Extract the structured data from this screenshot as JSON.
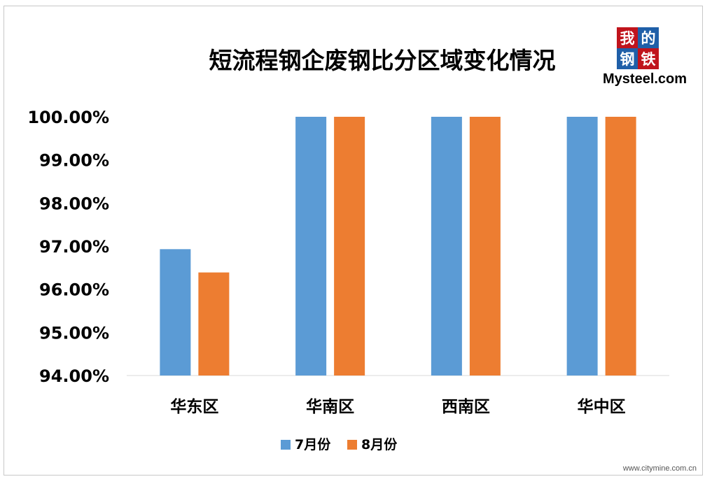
{
  "chart_data": {
    "type": "bar",
    "title": "短流程钢企废钢比分区域变化情况",
    "categories": [
      "华东区",
      "华南区",
      "西南区",
      "华中区"
    ],
    "series": [
      {
        "name": "7月份",
        "values": [
          96.93,
          100.0,
          100.0,
          100.0
        ],
        "color": "#5b9bd5"
      },
      {
        "name": "8月份",
        "values": [
          96.39,
          100.0,
          100.0,
          100.0
        ],
        "color": "#ed7d31"
      }
    ],
    "ylim": [
      94,
      100
    ],
    "yticks": [
      "94.00%",
      "95.00%",
      "96.00%",
      "97.00%",
      "98.00%",
      "99.00%",
      "100.00%"
    ],
    "xlabel": "",
    "ylabel": "",
    "grid": false,
    "legend_position": "bottom"
  },
  "logo": {
    "chars": [
      "我",
      "的",
      "钢",
      "铁"
    ],
    "text": "Mysteel.com",
    "red": "#c0141c",
    "blue": "#1f5fa8"
  },
  "watermark": "www.citymine.com.cn"
}
